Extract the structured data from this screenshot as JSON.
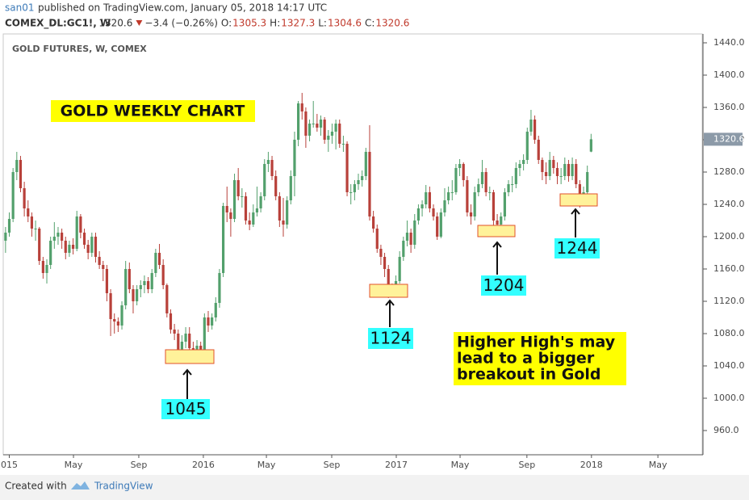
{
  "header": {
    "author": "san01",
    "published": "published on TradingView.com, January 05, 2018 14:17 UTC",
    "symbol": "COMEX_DL:GC1!, W",
    "change": "−3.4 (−0.26%)",
    "ohlc_labels": [
      "O:",
      "H:",
      "L:",
      "C:"
    ]
  },
  "footer": {
    "created": "Created with",
    "brand": "TradingView"
  },
  "chart_data": {
    "type": "candlestick",
    "title": "GOLD FUTURES, W, COMEX",
    "up_color": "#53a06c",
    "down_color": "#b8413a",
    "grid": false,
    "xlim": [
      -0.4,
      185.6
    ],
    "xticks": [
      {
        "value": 1,
        "label": "015"
      },
      {
        "value": 18.1,
        "label": "May"
      },
      {
        "value": 35.5,
        "label": "Sep"
      },
      {
        "value": 52.7,
        "label": "2016"
      },
      {
        "value": 69.5,
        "label": "May"
      },
      {
        "value": 86.9,
        "label": "Sep"
      },
      {
        "value": 104.1,
        "label": "2017"
      },
      {
        "value": 121.1,
        "label": "May"
      },
      {
        "value": 138.9,
        "label": "Sep"
      },
      {
        "value": 156.1,
        "label": "2018"
      },
      {
        "value": 173.8,
        "label": "May"
      }
    ],
    "ylim": [
      930,
      1451
    ],
    "yticks": [
      {
        "value": 960,
        "label": "960.0"
      },
      {
        "value": 1000,
        "label": "1000.0"
      },
      {
        "value": 1040,
        "label": "1040.0"
      },
      {
        "value": 1080,
        "label": "1080.0"
      },
      {
        "value": 1120,
        "label": "1120.0"
      },
      {
        "value": 1160,
        "label": "1160.0"
      },
      {
        "value": 1200,
        "label": "1200.0"
      },
      {
        "value": 1240,
        "label": "1240.0"
      },
      {
        "value": 1280,
        "label": "1280.0"
      },
      {
        "value": 1320,
        "label": "1320.0"
      },
      {
        "value": 1360,
        "label": "1360.0"
      },
      {
        "value": 1400,
        "label": "1400.0"
      },
      {
        "value": 1440,
        "label": "1440.0"
      }
    ],
    "ohlc": [
      [
        1195,
        1212,
        1180,
        1205
      ],
      [
        1205,
        1230,
        1200,
        1222
      ],
      [
        1222,
        1285,
        1218,
        1280
      ],
      [
        1280,
        1305,
        1270,
        1295
      ],
      [
        1295,
        1300,
        1255,
        1260
      ],
      [
        1260,
        1268,
        1225,
        1235
      ],
      [
        1235,
        1245,
        1218,
        1225
      ],
      [
        1225,
        1230,
        1200,
        1210
      ],
      [
        1210,
        1220,
        1195,
        1210
      ],
      [
        1210,
        1212,
        1165,
        1170
      ],
      [
        1170,
        1175,
        1148,
        1155
      ],
      [
        1155,
        1172,
        1142,
        1165
      ],
      [
        1165,
        1200,
        1160,
        1195
      ],
      [
        1195,
        1218,
        1185,
        1200
      ],
      [
        1200,
        1212,
        1190,
        1205
      ],
      [
        1205,
        1210,
        1185,
        1195
      ],
      [
        1195,
        1200,
        1172,
        1180
      ],
      [
        1180,
        1195,
        1175,
        1190
      ],
      [
        1190,
        1198,
        1178,
        1185
      ],
      [
        1185,
        1232,
        1182,
        1225
      ],
      [
        1225,
        1228,
        1198,
        1205
      ],
      [
        1205,
        1210,
        1185,
        1190
      ],
      [
        1190,
        1196,
        1172,
        1180
      ],
      [
        1180,
        1205,
        1175,
        1200
      ],
      [
        1200,
        1205,
        1168,
        1175
      ],
      [
        1175,
        1182,
        1160,
        1165
      ],
      [
        1165,
        1170,
        1145,
        1160
      ],
      [
        1160,
        1165,
        1120,
        1130
      ],
      [
        1130,
        1135,
        1077,
        1098
      ],
      [
        1098,
        1105,
        1080,
        1095
      ],
      [
        1095,
        1100,
        1082,
        1090
      ],
      [
        1090,
        1120,
        1085,
        1115
      ],
      [
        1115,
        1170,
        1110,
        1160
      ],
      [
        1160,
        1168,
        1130,
        1135
      ],
      [
        1135,
        1140,
        1105,
        1120
      ],
      [
        1120,
        1140,
        1115,
        1135
      ],
      [
        1135,
        1146,
        1125,
        1140
      ],
      [
        1140,
        1152,
        1130,
        1145
      ],
      [
        1145,
        1150,
        1130,
        1135
      ],
      [
        1135,
        1160,
        1130,
        1155
      ],
      [
        1155,
        1185,
        1150,
        1180
      ],
      [
        1180,
        1191,
        1160,
        1165
      ],
      [
        1165,
        1172,
        1135,
        1140
      ],
      [
        1140,
        1142,
        1100,
        1105
      ],
      [
        1105,
        1110,
        1080,
        1085
      ],
      [
        1085,
        1092,
        1072,
        1080
      ],
      [
        1080,
        1085,
        1052,
        1060
      ],
      [
        1060,
        1078,
        1046,
        1070
      ],
      [
        1070,
        1088,
        1062,
        1080
      ],
      [
        1080,
        1088,
        1055,
        1062
      ],
      [
        1062,
        1070,
        1046,
        1055
      ],
      [
        1055,
        1072,
        1050,
        1065
      ],
      [
        1065,
        1070,
        1050,
        1060
      ],
      [
        1060,
        1105,
        1058,
        1100
      ],
      [
        1100,
        1108,
        1082,
        1090
      ],
      [
        1090,
        1105,
        1085,
        1100
      ],
      [
        1100,
        1125,
        1095,
        1118
      ],
      [
        1118,
        1160,
        1112,
        1155
      ],
      [
        1155,
        1242,
        1150,
        1238
      ],
      [
        1238,
        1262,
        1218,
        1230
      ],
      [
        1230,
        1235,
        1200,
        1222
      ],
      [
        1222,
        1278,
        1218,
        1270
      ],
      [
        1270,
        1285,
        1245,
        1250
      ],
      [
        1250,
        1260,
        1236,
        1250
      ],
      [
        1250,
        1255,
        1215,
        1220
      ],
      [
        1220,
        1230,
        1208,
        1215
      ],
      [
        1215,
        1240,
        1212,
        1230
      ],
      [
        1230,
        1262,
        1225,
        1235
      ],
      [
        1235,
        1255,
        1230,
        1250
      ],
      [
        1250,
        1296,
        1245,
        1290
      ],
      [
        1290,
        1305,
        1280,
        1295
      ],
      [
        1295,
        1300,
        1270,
        1275
      ],
      [
        1275,
        1282,
        1245,
        1250
      ],
      [
        1250,
        1255,
        1212,
        1220
      ],
      [
        1220,
        1248,
        1200,
        1215
      ],
      [
        1215,
        1250,
        1210,
        1245
      ],
      [
        1245,
        1282,
        1240,
        1275
      ],
      [
        1275,
        1330,
        1250,
        1320
      ],
      [
        1320,
        1368,
        1312,
        1365
      ],
      [
        1365,
        1378,
        1345,
        1355
      ],
      [
        1355,
        1360,
        1310,
        1325
      ],
      [
        1325,
        1345,
        1318,
        1340
      ],
      [
        1340,
        1368,
        1335,
        1340
      ],
      [
        1340,
        1352,
        1330,
        1335
      ],
      [
        1335,
        1350,
        1325,
        1345
      ],
      [
        1345,
        1348,
        1315,
        1320
      ],
      [
        1320,
        1332,
        1305,
        1325
      ],
      [
        1325,
        1340,
        1315,
        1330
      ],
      [
        1330,
        1345,
        1308,
        1340
      ],
      [
        1340,
        1345,
        1310,
        1315
      ],
      [
        1315,
        1325,
        1305,
        1315
      ],
      [
        1315,
        1318,
        1250,
        1255
      ],
      [
        1255,
        1265,
        1240,
        1255
      ],
      [
        1255,
        1270,
        1245,
        1265
      ],
      [
        1265,
        1278,
        1258,
        1270
      ],
      [
        1270,
        1282,
        1262,
        1275
      ],
      [
        1275,
        1310,
        1270,
        1305
      ],
      [
        1305,
        1338,
        1220,
        1225
      ],
      [
        1225,
        1232,
        1205,
        1210
      ],
      [
        1210,
        1215,
        1180,
        1185
      ],
      [
        1185,
        1190,
        1165,
        1175
      ],
      [
        1175,
        1180,
        1150,
        1160
      ],
      [
        1160,
        1165,
        1124,
        1135
      ],
      [
        1135,
        1142,
        1125,
        1130
      ],
      [
        1130,
        1152,
        1128,
        1145
      ],
      [
        1145,
        1182,
        1142,
        1175
      ],
      [
        1175,
        1200,
        1170,
        1195
      ],
      [
        1195,
        1220,
        1188,
        1205
      ],
      [
        1205,
        1210,
        1180,
        1190
      ],
      [
        1190,
        1228,
        1185,
        1220
      ],
      [
        1220,
        1240,
        1215,
        1235
      ],
      [
        1235,
        1245,
        1225,
        1240
      ],
      [
        1240,
        1264,
        1235,
        1255
      ],
      [
        1255,
        1262,
        1230,
        1235
      ],
      [
        1235,
        1240,
        1220,
        1225
      ],
      [
        1225,
        1230,
        1196,
        1200
      ],
      [
        1200,
        1235,
        1198,
        1230
      ],
      [
        1230,
        1260,
        1225,
        1245
      ],
      [
        1245,
        1262,
        1240,
        1255
      ],
      [
        1255,
        1270,
        1245,
        1255
      ],
      [
        1255,
        1290,
        1252,
        1285
      ],
      [
        1285,
        1296,
        1275,
        1290
      ],
      [
        1290,
        1292,
        1262,
        1270
      ],
      [
        1270,
        1275,
        1225,
        1230
      ],
      [
        1230,
        1240,
        1215,
        1225
      ],
      [
        1225,
        1262,
        1220,
        1255
      ],
      [
        1255,
        1272,
        1250,
        1265
      ],
      [
        1265,
        1295,
        1260,
        1280
      ],
      [
        1280,
        1285,
        1250,
        1255
      ],
      [
        1255,
        1262,
        1245,
        1255
      ],
      [
        1255,
        1258,
        1204,
        1220
      ],
      [
        1220,
        1228,
        1205,
        1215
      ],
      [
        1215,
        1230,
        1208,
        1225
      ],
      [
        1225,
        1260,
        1220,
        1255
      ],
      [
        1255,
        1270,
        1250,
        1265
      ],
      [
        1265,
        1275,
        1255,
        1265
      ],
      [
        1265,
        1292,
        1260,
        1285
      ],
      [
        1285,
        1295,
        1275,
        1290
      ],
      [
        1290,
        1302,
        1282,
        1295
      ],
      [
        1295,
        1335,
        1290,
        1330
      ],
      [
        1330,
        1357,
        1325,
        1345
      ],
      [
        1345,
        1350,
        1315,
        1320
      ],
      [
        1320,
        1325,
        1290,
        1295
      ],
      [
        1295,
        1298,
        1270,
        1280
      ],
      [
        1280,
        1292,
        1265,
        1275
      ],
      [
        1275,
        1305,
        1270,
        1295
      ],
      [
        1295,
        1300,
        1278,
        1285
      ],
      [
        1285,
        1292,
        1265,
        1275
      ],
      [
        1275,
        1285,
        1265,
        1275
      ],
      [
        1275,
        1298,
        1270,
        1290
      ],
      [
        1290,
        1295,
        1268,
        1275
      ],
      [
        1275,
        1298,
        1270,
        1290
      ],
      [
        1290,
        1296,
        1260,
        1265
      ],
      [
        1265,
        1270,
        1236,
        1245
      ],
      [
        1245,
        1262,
        1240,
        1255
      ],
      [
        1255,
        1288,
        1250,
        1280
      ],
      [
        1305.3,
        1327.3,
        1304.6,
        1320.6
      ]
    ],
    "annotations": [
      {
        "text": "GOLD WEEKLY CHART"
      },
      {
        "text": "1045"
      },
      {
        "text": "1124"
      },
      {
        "text": "1204"
      },
      {
        "text": "1244"
      },
      {
        "lines": [
          "Higher High's may",
          "lead to a bigger",
          "breakout in Gold"
        ]
      }
    ]
  }
}
